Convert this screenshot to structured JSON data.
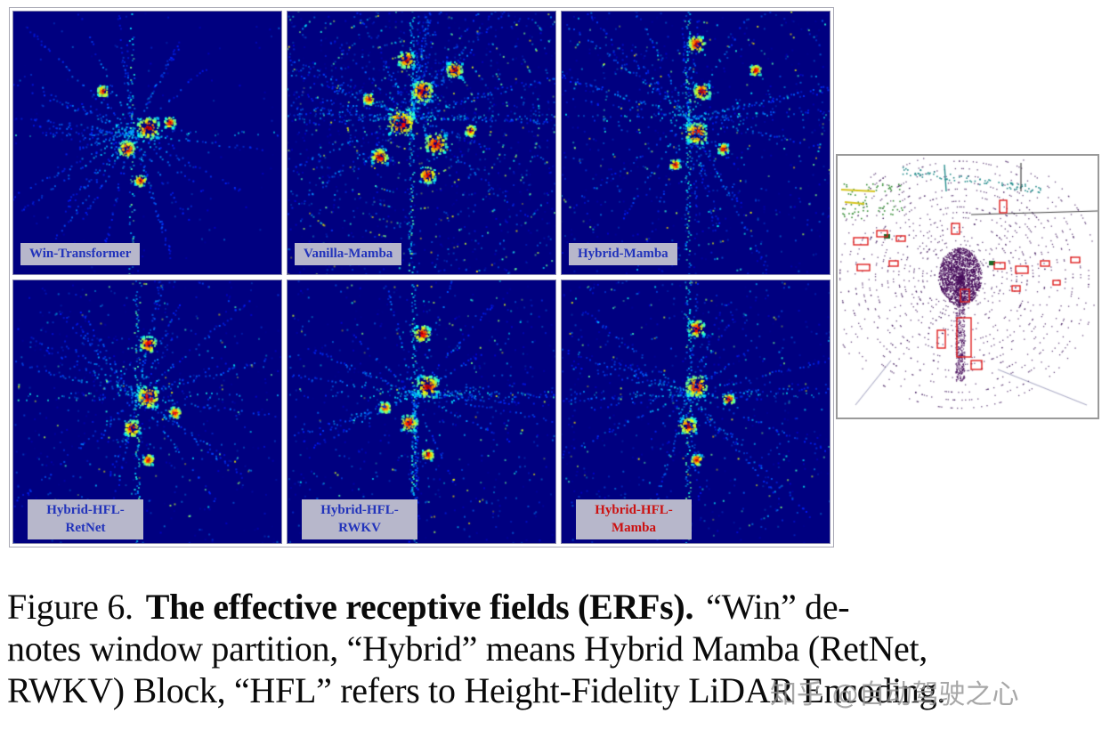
{
  "panels": [
    {
      "label_lines": [
        "Win-Transformer"
      ],
      "color": "#2233bb"
    },
    {
      "label_lines": [
        "Vanilla-Mamba"
      ],
      "color": "#2233bb"
    },
    {
      "label_lines": [
        "Hybrid-Mamba"
      ],
      "color": "#2233bb"
    },
    {
      "label_lines": [
        "Hybrid-HFL-",
        "RetNet"
      ],
      "color": "#2233bb"
    },
    {
      "label_lines": [
        "Hybrid-HFL-",
        "RWKV"
      ],
      "color": "#2233bb"
    },
    {
      "label_lines": [
        "Hybrid-HFL-",
        "Mamba"
      ],
      "color": "#cc1111"
    }
  ],
  "caption": {
    "figure_label": "Figure 6.",
    "bold_text": "The effective receptive fields (ERFs).",
    "line1_rest": "“Win” de-",
    "line2": "notes window partition, “Hybrid” means Hybrid Mamba (RetNet,",
    "line3": "RWKV) Block, “HFL” refers to Height-Fidelity LiDAR Encoding."
  },
  "watermark": "知乎 @自动驾驶之心",
  "colors": {
    "panel_background": "#000080",
    "label_background": "#b7b7cb",
    "label_blue": "#2233bb",
    "label_red": "#cc1111",
    "detection_box_red": "#e02020"
  }
}
